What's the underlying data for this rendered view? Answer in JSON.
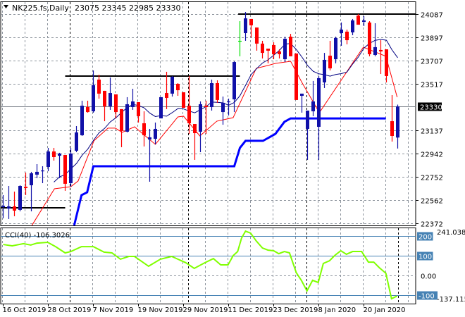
{
  "header": {
    "symbol": "NK225.fs,Daily",
    "ohlc": "23075 23345 22985 23330"
  },
  "colors": {
    "bull": "#1010a8",
    "bear": "#ff0000",
    "doji": "#00e000",
    "sma": "#000080",
    "lower_line": "#ff0000",
    "step_line": "#0000ff",
    "cci": "#80ff00",
    "cci_levels": "#4682b4",
    "grid": "#8c939c"
  },
  "chart_data": {
    "type": "candlestick",
    "title": "NK225.fs,Daily",
    "price_axis": {
      "ticks": [
        "24087",
        "23897",
        "23707",
        "23517",
        "23137",
        "22942",
        "22752",
        "22562",
        "22372"
      ],
      "range": [
        22372,
        24087
      ],
      "current_price_label": "23330",
      "current_price": 23330
    },
    "x_labels": [
      {
        "bar": 0,
        "label": "16 Oct 2019"
      },
      {
        "bar": 8,
        "label": "28 Oct 2019"
      },
      {
        "bar": 16,
        "label": "7 Nov 2019"
      },
      {
        "bar": 24,
        "label": "19 Nov 2019"
      },
      {
        "bar": 32,
        "label": "29 Nov 2019"
      },
      {
        "bar": 40,
        "label": "11 Dec 2019"
      },
      {
        "bar": 48,
        "label": "23 Dec 2019"
      },
      {
        "bar": 56,
        "label": "8 Jan 2020"
      },
      {
        "bar": 64,
        "label": "20 Jan 2020"
      }
    ],
    "ohlc": [
      [
        22505,
        22603,
        22413,
        22516
      ],
      [
        22493,
        22678,
        22407,
        22511
      ],
      [
        22511,
        22632,
        22430,
        22476
      ],
      [
        22482,
        22684,
        22470,
        22678
      ],
      [
        22672,
        22788,
        22603,
        22661
      ],
      [
        22684,
        22794,
        22470,
        22782
      ],
      [
        22771,
        22857,
        22742,
        22794
      ],
      [
        22805,
        22840,
        22701,
        22805
      ],
      [
        22834,
        22990,
        22799,
        22961
      ],
      [
        22961,
        22990,
        22886,
        22915
      ],
      [
        22926,
        22950,
        22742,
        22944
      ],
      [
        22932,
        22932,
        22638,
        22696
      ],
      [
        22701,
        22990,
        22672,
        22944
      ],
      [
        22967,
        23169,
        22955,
        23117
      ],
      [
        23094,
        23377,
        23088,
        23336
      ],
      [
        23325,
        23377,
        23279,
        23284
      ],
      [
        23290,
        23625,
        23279,
        23504
      ],
      [
        23550,
        23590,
        23394,
        23435
      ],
      [
        23458,
        23458,
        23209,
        23331
      ],
      [
        23331,
        23567,
        23302,
        23440
      ],
      [
        23429,
        23429,
        23232,
        23284
      ],
      [
        23308,
        23308,
        22996,
        23129
      ],
      [
        23123,
        23406,
        23117,
        23348
      ],
      [
        23325,
        23475,
        23302,
        23371
      ],
      [
        23365,
        23365,
        23198,
        23250
      ],
      [
        23192,
        23290,
        23002,
        23094
      ],
      [
        23059,
        23146,
        22713,
        23077
      ],
      [
        23065,
        23198,
        23019,
        23146
      ],
      [
        23232,
        23406,
        23232,
        23406
      ],
      [
        23440,
        23614,
        23308,
        23400
      ],
      [
        23435,
        23579,
        23411,
        23573
      ],
      [
        23515,
        23521,
        23417,
        23463
      ],
      [
        23446,
        23446,
        23319,
        23319
      ],
      [
        23336,
        23579,
        23105,
        23192
      ],
      [
        23186,
        23186,
        22892,
        23111
      ],
      [
        23123,
        23371,
        22955,
        23348
      ],
      [
        23336,
        23377,
        23105,
        23325
      ],
      [
        23325,
        23550,
        23296,
        23521
      ],
      [
        23521,
        23544,
        23360,
        23383
      ],
      [
        23284,
        23411,
        23180,
        23360
      ],
      [
        23371,
        23394,
        23256,
        23371
      ],
      [
        23388,
        23700,
        23284,
        23694
      ],
      [
        23868,
        24029,
        23741,
        23868
      ],
      [
        23931,
        24104,
        23868,
        24052
      ],
      [
        24047,
        24047,
        23896,
        23995
      ],
      [
        23977,
        23977,
        23787,
        23845
      ],
      [
        23845,
        23868,
        23723,
        23769
      ],
      [
        23804,
        23804,
        23683,
        23787
      ],
      [
        23833,
        23856,
        23717,
        23758
      ],
      [
        23781,
        23798,
        23723,
        23758
      ],
      [
        23717,
        23902,
        23694,
        23885
      ],
      [
        23902,
        23925,
        23741,
        23741
      ],
      [
        23764,
        23764,
        23383,
        23383
      ],
      [
        23417,
        23435,
        23279,
        23435
      ],
      [
        23146,
        23296,
        22892,
        23296
      ],
      [
        23290,
        23539,
        23250,
        23371
      ],
      [
        23163,
        23579,
        22892,
        23562
      ],
      [
        23527,
        23769,
        23481,
        23712
      ],
      [
        23746,
        23868,
        23625,
        23642
      ],
      [
        23717,
        23902,
        23683,
        23891
      ],
      [
        23931,
        24018,
        23827,
        23960
      ],
      [
        23943,
        23960,
        23839,
        23873
      ],
      [
        23937,
        24047,
        23914,
        24035
      ],
      [
        24075,
        24087,
        24000,
        24000
      ],
      [
        24023,
        24070,
        23989,
        24035
      ],
      [
        24018,
        24029,
        23741,
        23758
      ],
      [
        23752,
        24012,
        23741,
        23816
      ],
      [
        23793,
        23873,
        23596,
        23781
      ],
      [
        23798,
        23798,
        23527,
        23579
      ],
      [
        23209,
        23423,
        23042,
        23088
      ],
      [
        23075,
        23345,
        22985,
        23330
      ]
    ],
    "sma_period": 10,
    "lower_line": [
      [
        5.1,
        22355
      ],
      [
        9.1,
        22655
      ],
      [
        12,
        22672
      ],
      [
        13.3,
        22719
      ],
      [
        16.1,
        23048
      ],
      [
        18.6,
        23152
      ],
      [
        19.9,
        23152
      ],
      [
        21.1,
        23117
      ],
      [
        23.3,
        23163
      ],
      [
        27,
        23019
      ],
      [
        31,
        23244
      ],
      [
        32,
        23250
      ],
      [
        34.9,
        23088
      ],
      [
        37.9,
        23209
      ],
      [
        40.8,
        23238
      ],
      [
        44.9,
        23642
      ],
      [
        47,
        23666
      ],
      [
        48.3,
        23683
      ],
      [
        51,
        23700
      ],
      [
        53,
        23527
      ],
      [
        56.1,
        23279
      ],
      [
        63.9,
        23816
      ],
      [
        67.9,
        23741
      ],
      [
        69.9,
        23406
      ]
    ],
    "step_line": [
      [
        12.6,
        22355
      ],
      [
        13.9,
        22603
      ],
      [
        14.9,
        22626
      ],
      [
        16,
        22840
      ],
      [
        41,
        22840
      ],
      [
        42,
        22990
      ],
      [
        43,
        23048
      ],
      [
        46.1,
        23048
      ],
      [
        48.3,
        23105
      ],
      [
        49.9,
        23204
      ],
      [
        51,
        23232
      ],
      [
        67.9,
        23232
      ]
    ],
    "levels": [
      {
        "price": 24087,
        "from_bar": 41.7,
        "to_bar": 73.3
      },
      {
        "price": 23579,
        "from_bar": 11,
        "to_bar": 42
      },
      {
        "price": 22499,
        "from_bar": -0.6,
        "to_bar": 11
      }
    ],
    "cci": {
      "label": "CCI(40) -106.3026",
      "max_label": "241.0386",
      "min_label": "-137.115",
      "range": [
        -137.115,
        241.0386
      ],
      "level_labels": [
        {
          "value": 200,
          "label": "200"
        },
        {
          "value": 100,
          "label": "100"
        },
        {
          "value": -100,
          "label": "-100"
        }
      ],
      "zero_label": "0.00",
      "values": [
        [
          0,
          157
        ],
        [
          1.6,
          150
        ],
        [
          3.6,
          161
        ],
        [
          4.9,
          154
        ],
        [
          6,
          164
        ],
        [
          7.9,
          168
        ],
        [
          9.3,
          146
        ],
        [
          11,
          114
        ],
        [
          12,
          121
        ],
        [
          13.9,
          146
        ],
        [
          16,
          146
        ],
        [
          17.9,
          118
        ],
        [
          19.3,
          114
        ],
        [
          20.8,
          82
        ],
        [
          22.3,
          96
        ],
        [
          23.3,
          96
        ],
        [
          25.8,
          46
        ],
        [
          27.9,
          82
        ],
        [
          29.9,
          96
        ],
        [
          32.4,
          64
        ],
        [
          33.9,
          35
        ],
        [
          35.8,
          64
        ],
        [
          37.3,
          85
        ],
        [
          38.6,
          53
        ],
        [
          39.9,
          53
        ],
        [
          40.8,
          100
        ],
        [
          41.6,
          121
        ],
        [
          42.3,
          190
        ],
        [
          43,
          225
        ],
        [
          43.9,
          215
        ],
        [
          44.9,
          175
        ],
        [
          46,
          139
        ],
        [
          47,
          128
        ],
        [
          48,
          125
        ],
        [
          48.9,
          110
        ],
        [
          49.9,
          121
        ],
        [
          50.8,
          114
        ],
        [
          52,
          13
        ],
        [
          52.9,
          -26
        ],
        [
          53.9,
          -80
        ],
        [
          54.9,
          -26
        ],
        [
          55.9,
          -37
        ],
        [
          56.8,
          60
        ],
        [
          57.9,
          74
        ],
        [
          58.9,
          103
        ],
        [
          59.9,
          125
        ],
        [
          60.9,
          107
        ],
        [
          62,
          121
        ],
        [
          63.6,
          121
        ],
        [
          64.8,
          67
        ],
        [
          65.75,
          67
        ],
        [
          66.75,
          38
        ],
        [
          67.9,
          10
        ],
        [
          68.9,
          -120
        ],
        [
          69.9,
          -106
        ]
      ]
    }
  }
}
